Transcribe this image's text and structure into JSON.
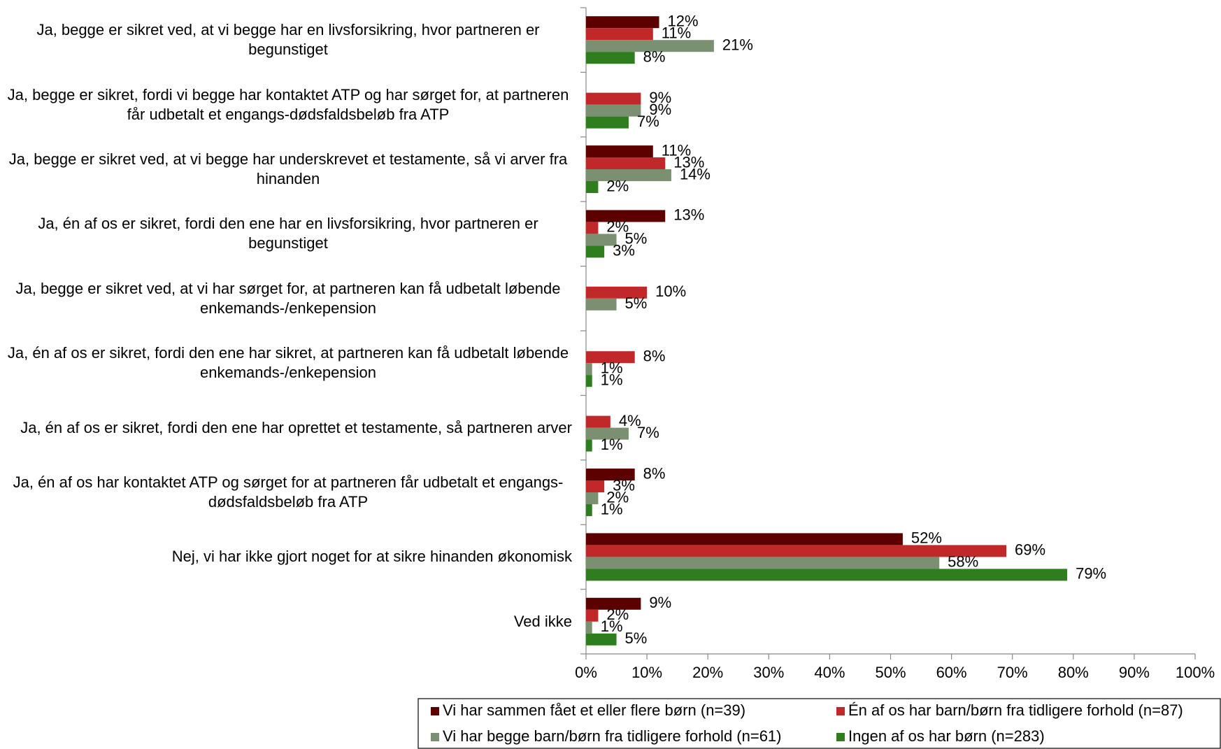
{
  "chart_data": {
    "type": "hbar",
    "categories": [
      "Ja, begge er sikret ved, at vi begge har en livsforsikring, hvor partneren er begunstiget",
      "Ja, begge er sikret, fordi vi begge har kontaktet ATP og har sørget for, at partneren får udbetalt et engangs-dødsfaldsbeløb fra ATP",
      "Ja, begge er sikret ved, at vi begge har underskrevet et testamente, så vi arver fra hinanden",
      "Ja, én af os er sikret, fordi den ene har en livsforsikring, hvor partneren er begunstiget",
      "Ja, begge er sikret ved, at vi har sørget for, at partneren kan få udbetalt løbende enkemands-/enkepension",
      "Ja, én af os er sikret, fordi den ene har sikret, at partneren kan få udbetalt løbende enkemands-/enkepension",
      "Ja, én af os er sikret, fordi den ene har oprettet et testamente, så partneren arver",
      "Ja, én af os har kontaktet ATP og sørget for at partneren får udbetalt et engangs-dødsfaldsbeløb fra ATP",
      "Nej, vi har ikke gjort noget for at sikre hinanden økonomisk",
      "Ved ikke"
    ],
    "series": [
      {
        "name": "Vi har sammen fået et eller flere børn (n=39)",
        "color": "#5c0000",
        "values": [
          12,
          null,
          11,
          13,
          null,
          null,
          null,
          8,
          52,
          9
        ],
        "value_labels": [
          "12%",
          null,
          "11%",
          "13%",
          null,
          null,
          null,
          "8%",
          "52%",
          "9%"
        ]
      },
      {
        "name": "Én af os har barn/børn fra tidligere forhold (n=87)",
        "color": "#c0282a",
        "values": [
          11,
          9,
          13,
          2,
          10,
          8,
          4,
          3,
          69,
          2
        ],
        "value_labels": [
          "11%",
          "9%",
          "13%",
          "2%",
          "10%",
          "8%",
          "4%",
          "3%",
          "69%",
          "2%"
        ]
      },
      {
        "name": "Vi har begge barn/børn fra tidligere forhold (n=61)",
        "color": "#7a9070",
        "values": [
          21,
          9,
          14,
          5,
          5,
          1,
          7,
          2,
          58,
          1
        ],
        "value_labels": [
          "21%",
          "9%",
          "14%",
          "5%",
          "5%",
          "1%",
          "7%",
          "2%",
          "58%",
          "1%"
        ]
      },
      {
        "name": "Ingen af os har børn (n=283)",
        "color": "#2e7d1e",
        "values": [
          8,
          7,
          2,
          3,
          null,
          1,
          1,
          1,
          79,
          5
        ],
        "value_labels": [
          "8%",
          "7%",
          "2%",
          "3%",
          null,
          "1%",
          "1%",
          "1%",
          "79%",
          "5%"
        ]
      }
    ],
    "xlim": [
      0,
      100
    ],
    "xticks": [
      {
        "value": 0,
        "label": "0%"
      },
      {
        "value": 10,
        "label": "10%"
      },
      {
        "value": 20,
        "label": "20%"
      },
      {
        "value": 30,
        "label": "30%"
      },
      {
        "value": 40,
        "label": "40%"
      },
      {
        "value": 50,
        "label": "50%"
      },
      {
        "value": 60,
        "label": "60%"
      },
      {
        "value": 70,
        "label": "70%"
      },
      {
        "value": 80,
        "label": "80%"
      },
      {
        "value": 90,
        "label": "90%"
      },
      {
        "value": 100,
        "label": "100%"
      }
    ],
    "grid": false,
    "legend": "bottom"
  }
}
